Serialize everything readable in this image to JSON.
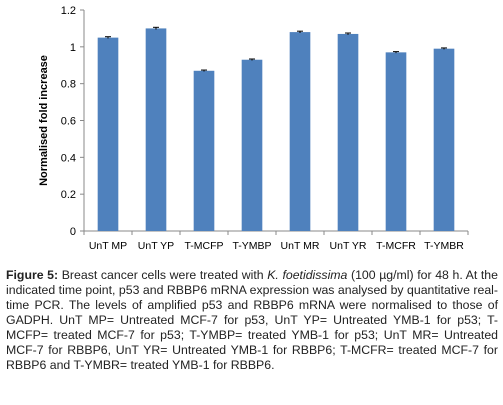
{
  "chart_data": {
    "type": "bar",
    "ylabel": "Normalised fold increase",
    "ylim": [
      0,
      1.2
    ],
    "yticks": [
      "0",
      "0.2",
      "0.4",
      "0.6",
      "0.8",
      "1",
      "1.2"
    ],
    "categories": [
      "UnT MP",
      "UnT YP",
      "T-MCFP",
      "T-YMBP",
      "UnT MR",
      "UnT YR",
      "T-MCFR",
      "T-YMBR"
    ],
    "values": [
      1.05,
      1.1,
      0.87,
      0.93,
      1.08,
      1.07,
      0.97,
      0.99
    ],
    "errors": [
      0.005,
      0.006,
      0.004,
      0.004,
      0.005,
      0.005,
      0.004,
      0.004
    ],
    "bar_color": "#4f81bd",
    "grid": false
  },
  "caption": {
    "label": "Figure 5:",
    "part1": " Breast cancer cells were treated with ",
    "species": "K. foetidissima",
    "part2": " (100 µg/ml) for 48 h. At the indicated time point, p53 and RBBP6 mRNA expression was analysed by quantitative real-time PCR. The levels of amplified p53 and RBBP6 mRNA were normalised to those of GADPH. UnT MP= Untreated MCF-7 for p53, UnT YP= Untreated YMB-1 for p53; T-MCFP= treated MCF-7 for p53; T-YMBP= treated YMB-1 for p53; UnT MR= Untreated MCF-7 for RBBP6, UnT YR= Untreated YMB-1 for RBBP6; T-MCFR= treated MCF-7 for RBBP6 and T-YMBR= treated YMB-1 for RBBP6."
  }
}
